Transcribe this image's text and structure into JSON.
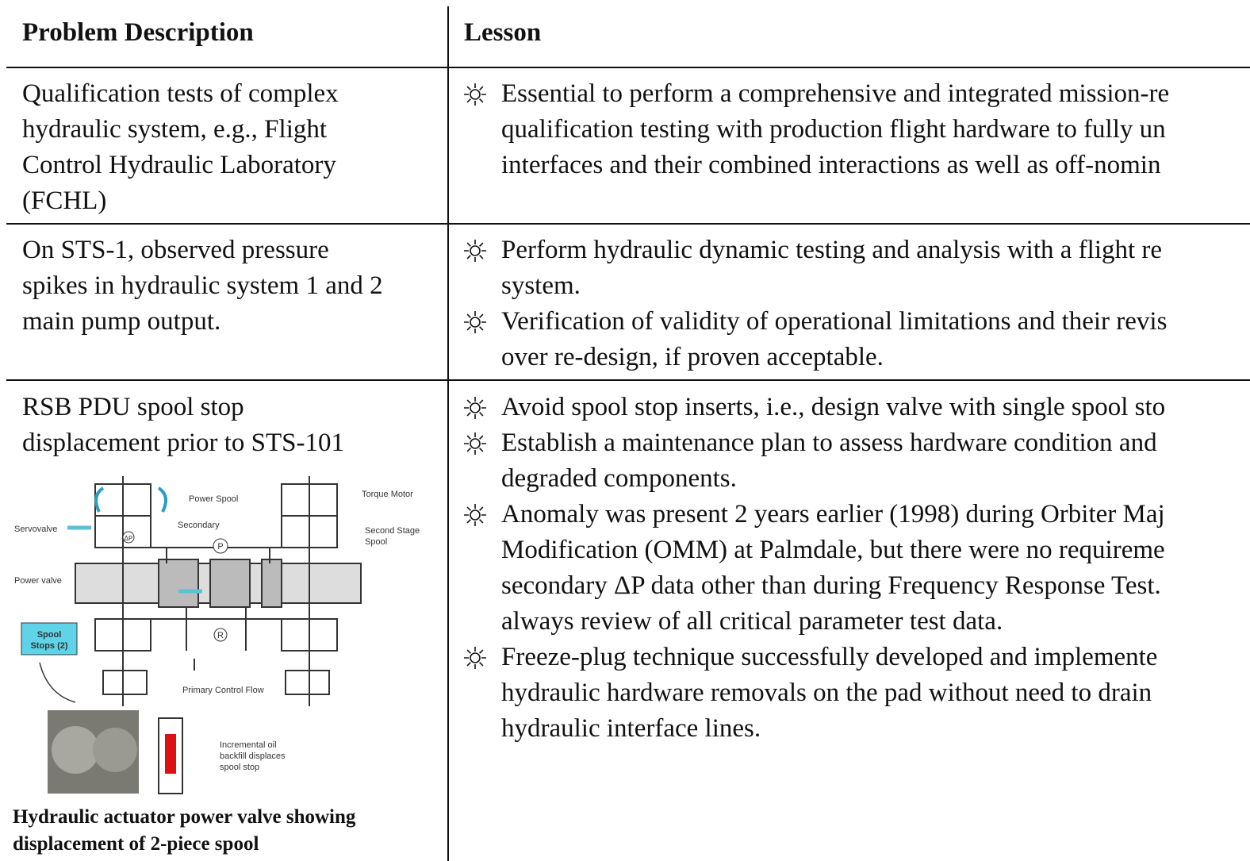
{
  "table": {
    "headers": [
      "Problem Description",
      "Lesson"
    ],
    "rows": [
      {
        "problem": [
          "Qualification tests of complex",
          "hydraulic system, e.g., Flight",
          "Control Hydraulic Laboratory",
          "(FCHL)"
        ],
        "lessons": [
          [
            "Essential to perform a comprehensive and integrated mission-re",
            "qualification testing with production flight hardware to fully un",
            "interfaces and their combined interactions as well as off-nomin"
          ]
        ]
      },
      {
        "problem": [
          "On STS-1, observed pressure",
          "spikes in hydraulic system 1 and 2",
          "main pump output."
        ],
        "lessons": [
          [
            "Perform hydraulic dynamic testing and analysis with a flight re",
            "system."
          ],
          [
            "Verification of validity of operational limitations and their revis",
            "over re-design, if proven acceptable."
          ]
        ]
      },
      {
        "problem": [
          "RSB PDU spool stop",
          "displacement prior to STS-101"
        ],
        "lessons": [
          [
            "Avoid spool stop inserts, i.e., design valve with single spool sto"
          ],
          [
            "Establish a maintenance plan to assess hardware condition and",
            "degraded components."
          ],
          [
            "Anomaly was present 2 years earlier (1998) during Orbiter Maj",
            "Modification (OMM) at Palmdale, but there were no requireme",
            "secondary ΔP data other than during Frequency Response Test.",
            "always review of all critical parameter test data."
          ],
          [
            "Freeze-plug technique successfully developed and implemente",
            "hydraulic hardware removals on the pad without need to drain",
            "hydraulic interface lines."
          ]
        ]
      }
    ]
  },
  "figure": {
    "labels": {
      "power_spool": "Power Spool",
      "torque_motor": "Torque Motor",
      "servovalve": "Servovalve",
      "secondary": "Secondary",
      "second_stage": [
        "Second Stage",
        "Spool"
      ],
      "power_valve": "Power valve",
      "spool_stops": [
        "Spool",
        "Stops (2)"
      ],
      "primary_flow": "Primary Control Flow",
      "incremental": [
        "Incremental oil",
        "backfill displaces",
        "spool stop"
      ],
      "p": "P",
      "r": "R",
      "dp": "ΔP"
    },
    "caption": [
      "Hydraulic actuator power valve showing",
      "displacement of 2-piece spool"
    ]
  }
}
